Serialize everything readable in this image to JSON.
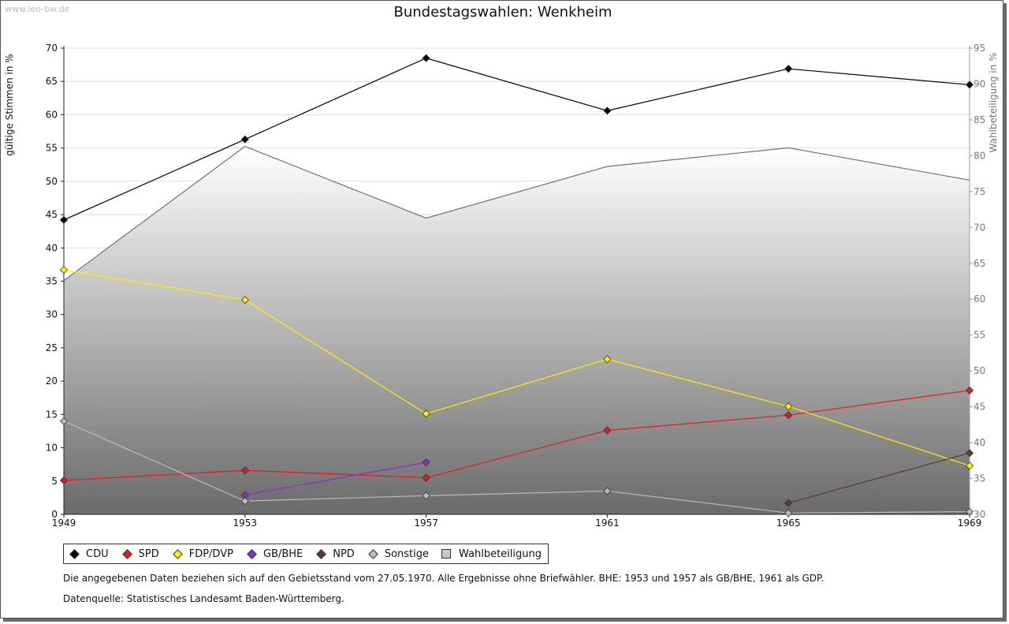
{
  "watermark": "www.leo-bw.de",
  "chart_data": {
    "type": "line",
    "title": "Bundestagswahlen: Wenkheim",
    "ylabel": "gültige Stimmen in %",
    "y2label": "Wahlbeteiligung in %",
    "xlabel": "",
    "x": [
      1949,
      1953,
      1957,
      1961,
      1965,
      1969
    ],
    "x_ticks": [
      "1949",
      "1953",
      "1957",
      "1961",
      "1965",
      "1969"
    ],
    "ylim": [
      0,
      70
    ],
    "y_ticks": [
      0,
      5,
      10,
      15,
      20,
      25,
      30,
      35,
      40,
      45,
      50,
      55,
      60,
      65,
      70
    ],
    "y2lim": [
      30,
      95
    ],
    "y2_ticks": [
      30,
      35,
      40,
      45,
      50,
      55,
      60,
      65,
      70,
      75,
      80,
      85,
      90,
      95
    ],
    "grid": true,
    "series": [
      {
        "name": "CDU",
        "color": "#000000",
        "values": [
          44.2,
          56.3,
          68.5,
          60.6,
          66.9,
          64.5
        ]
      },
      {
        "name": "SPD",
        "color": "#e8191b",
        "values": [
          5.1,
          6.6,
          5.5,
          12.6,
          14.9,
          18.6
        ]
      },
      {
        "name": "FDP/DVP",
        "color": "#ffee00",
        "values": [
          36.7,
          32.2,
          15.1,
          23.3,
          16.2,
          7.3
        ]
      },
      {
        "name": "GB/BHE",
        "color": "#8b2fc9",
        "values": [
          null,
          2.9,
          7.8,
          null,
          null,
          null
        ]
      },
      {
        "name": "NPD",
        "color": "#5a3b2e",
        "values": [
          null,
          null,
          null,
          null,
          1.7,
          9.2
        ]
      },
      {
        "name": "Sonstige",
        "color": "#bbbbbb",
        "values": [
          14.0,
          2.0,
          2.8,
          3.5,
          0.2,
          0.4
        ]
      }
    ],
    "area": {
      "name": "Wahlbeteiligung",
      "axis": "y2",
      "values": [
        62.6,
        81.3,
        71.3,
        78.5,
        81.1,
        76.6
      ]
    }
  },
  "notes": {
    "line1": "Die angegebenen Daten beziehen sich auf den Gebietsstand vom 27.05.1970. Alle Ergebnisse ohne Briefwähler. BHE: 1953 und 1957 als GB/BHE, 1961 als GDP.",
    "line2": "Datenquelle: Statistisches Landesamt Baden-Württemberg."
  }
}
